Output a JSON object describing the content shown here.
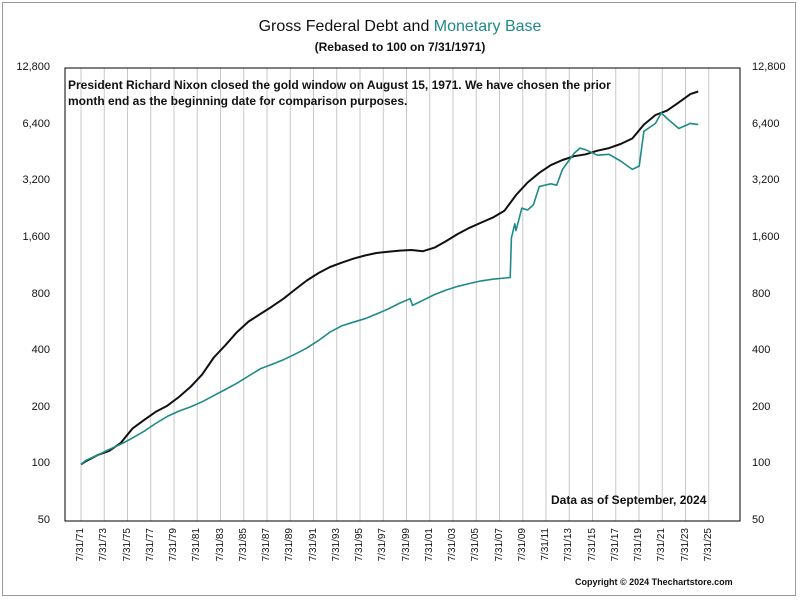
{
  "chart_data": {
    "type": "line",
    "title_prefix": "Gross Federal Debt and ",
    "title_accent": "Monetary Base",
    "subtitle": "(Rebased to 100 on 7/31/1971)",
    "y_scale": "log2",
    "ylim": [
      50,
      12800
    ],
    "y_ticks": [
      "12,800",
      "6,400",
      "3,200",
      "1,600",
      "800",
      "400",
      "200",
      "100",
      "50"
    ],
    "x_ticks": [
      "7/31/71",
      "7/31/73",
      "7/31/75",
      "7/31/77",
      "7/31/79",
      "7/31/81",
      "7/31/83",
      "7/31/85",
      "7/31/87",
      "7/31/89",
      "7/31/91",
      "7/31/93",
      "7/31/95",
      "7/31/97",
      "7/31/99",
      "7/31/01",
      "7/31/03",
      "7/31/05",
      "7/31/07",
      "7/31/09",
      "7/31/11",
      "7/31/13",
      "7/31/15",
      "7/31/17",
      "7/31/19",
      "7/31/21",
      "7/31/23",
      "7/31/25"
    ],
    "xlim": [
      1971.58,
      2025.58
    ],
    "grid": "vertical",
    "series": [
      {
        "name": "Gross Federal Debt",
        "color": "#111111",
        "points": [
          [
            1971.58,
            100
          ],
          [
            1972,
            104
          ],
          [
            1973,
            112
          ],
          [
            1974,
            118
          ],
          [
            1975,
            130
          ],
          [
            1976,
            155
          ],
          [
            1977,
            172
          ],
          [
            1978,
            190
          ],
          [
            1979,
            205
          ],
          [
            1980,
            228
          ],
          [
            1981,
            258
          ],
          [
            1982,
            300
          ],
          [
            1983,
            370
          ],
          [
            1984,
            430
          ],
          [
            1985,
            505
          ],
          [
            1986,
            575
          ],
          [
            1987,
            630
          ],
          [
            1988,
            690
          ],
          [
            1989,
            760
          ],
          [
            1990,
            850
          ],
          [
            1991,
            950
          ],
          [
            1992,
            1040
          ],
          [
            1993,
            1120
          ],
          [
            1994,
            1180
          ],
          [
            1995,
            1240
          ],
          [
            1996,
            1290
          ],
          [
            1997,
            1330
          ],
          [
            1998,
            1350
          ],
          [
            1999,
            1370
          ],
          [
            2000,
            1380
          ],
          [
            2001,
            1360
          ],
          [
            2002,
            1420
          ],
          [
            2003,
            1540
          ],
          [
            2004,
            1680
          ],
          [
            2005,
            1810
          ],
          [
            2006,
            1930
          ],
          [
            2007,
            2050
          ],
          [
            2008,
            2230
          ],
          [
            2009,
            2700
          ],
          [
            2010,
            3150
          ],
          [
            2011,
            3550
          ],
          [
            2012,
            3900
          ],
          [
            2013,
            4150
          ],
          [
            2014,
            4350
          ],
          [
            2015,
            4450
          ],
          [
            2016,
            4650
          ],
          [
            2017,
            4800
          ],
          [
            2018,
            5050
          ],
          [
            2019,
            5400
          ],
          [
            2020,
            6400
          ],
          [
            2021,
            7200
          ],
          [
            2022,
            7600
          ],
          [
            2023,
            8400
          ],
          [
            2024,
            9300
          ],
          [
            2024.67,
            9600
          ]
        ]
      },
      {
        "name": "Monetary Base",
        "color": "#1f8a8a",
        "points": [
          [
            1971.58,
            100
          ],
          [
            1972,
            105
          ],
          [
            1973,
            112
          ],
          [
            1974,
            120
          ],
          [
            1975,
            128
          ],
          [
            1976,
            138
          ],
          [
            1977,
            150
          ],
          [
            1978,
            165
          ],
          [
            1979,
            180
          ],
          [
            1980,
            192
          ],
          [
            1981,
            202
          ],
          [
            1982,
            215
          ],
          [
            1983,
            232
          ],
          [
            1984,
            250
          ],
          [
            1985,
            270
          ],
          [
            1986,
            295
          ],
          [
            1987,
            322
          ],
          [
            1988,
            340
          ],
          [
            1989,
            360
          ],
          [
            1990,
            385
          ],
          [
            1991,
            415
          ],
          [
            1992,
            455
          ],
          [
            1993,
            505
          ],
          [
            1994,
            545
          ],
          [
            1995,
            570
          ],
          [
            1996,
            595
          ],
          [
            1997,
            630
          ],
          [
            1998,
            670
          ],
          [
            1999,
            720
          ],
          [
            1999.9,
            760
          ],
          [
            2000.1,
            700
          ],
          [
            2001,
            745
          ],
          [
            2002,
            800
          ],
          [
            2003,
            845
          ],
          [
            2004,
            885
          ],
          [
            2005,
            915
          ],
          [
            2006,
            945
          ],
          [
            2007,
            965
          ],
          [
            2008.5,
            985
          ],
          [
            2008.6,
            1600
          ],
          [
            2008.9,
            1900
          ],
          [
            2009,
            1750
          ],
          [
            2009.5,
            2300
          ],
          [
            2010,
            2250
          ],
          [
            2010.5,
            2400
          ],
          [
            2011,
            3000
          ],
          [
            2012,
            3100
          ],
          [
            2012.5,
            3050
          ],
          [
            2013,
            3700
          ],
          [
            2014,
            4500
          ],
          [
            2014.5,
            4800
          ],
          [
            2015,
            4700
          ],
          [
            2016,
            4400
          ],
          [
            2017,
            4450
          ],
          [
            2018,
            4100
          ],
          [
            2019,
            3700
          ],
          [
            2019.6,
            3850
          ],
          [
            2020,
            5900
          ],
          [
            2021,
            6500
          ],
          [
            2021.5,
            7400
          ],
          [
            2022,
            6900
          ],
          [
            2023,
            6100
          ],
          [
            2024,
            6500
          ],
          [
            2024.67,
            6400
          ]
        ]
      }
    ]
  },
  "annotation": "President Richard Nixon closed the gold window on August 15, 1971.  We have chosen the prior month end as the beginning date for comparison purposes.",
  "data_as_of": "Data as of September, 2024",
  "copyright": "Copyright © 2024 Thechartstore.com"
}
